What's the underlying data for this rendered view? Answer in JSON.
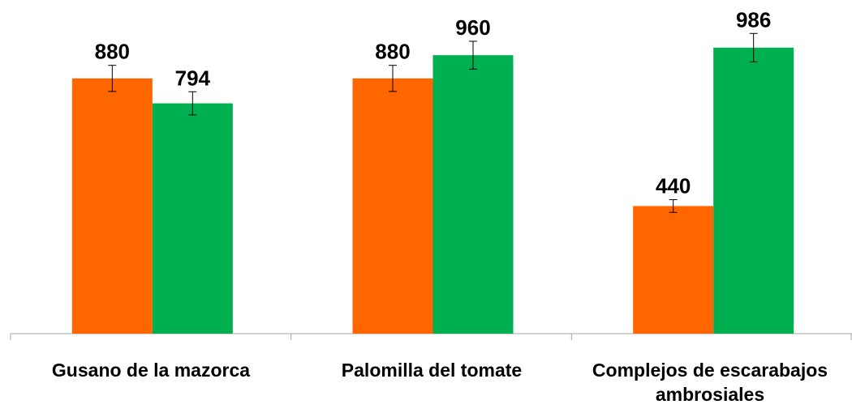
{
  "chart_data": {
    "type": "bar",
    "categories": [
      "Gusano de la mazorca",
      "Palomilla del tomate",
      "Complejos de escarabajos ambrosiales"
    ],
    "series": [
      {
        "color": "#FF6600",
        "values": [
          880,
          880,
          440
        ],
        "labels": [
          "880",
          "880",
          "440"
        ],
        "error": [
          45,
          45,
          22
        ]
      },
      {
        "color": "#00B050",
        "values": [
          794,
          960,
          986
        ],
        "labels": [
          "794",
          "960",
          "986"
        ],
        "error": [
          40,
          48,
          49
        ]
      }
    ],
    "title": "",
    "xlabel": "",
    "ylabel": "",
    "ylim": [
      0,
      1100
    ],
    "grid": false,
    "legend": "none"
  },
  "category_lines": [
    [
      "Gusano de la mazorca"
    ],
    [
      "Palomilla del tomate"
    ],
    [
      "Complejos de escarabajos",
      "ambrosiales"
    ]
  ]
}
